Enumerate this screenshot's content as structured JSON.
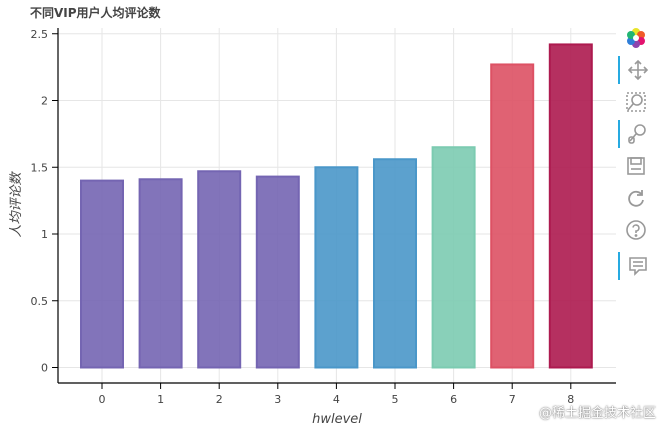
{
  "chart_data": {
    "type": "bar",
    "title": "不同VIP用户人均评论数",
    "xlabel": "hwlevel",
    "ylabel": "人均评论数",
    "categories": [
      "0",
      "1",
      "2",
      "3",
      "4",
      "5",
      "6",
      "7",
      "8"
    ],
    "values": [
      1.4,
      1.41,
      1.47,
      1.43,
      1.5,
      1.56,
      1.65,
      2.27,
      2.42
    ],
    "colors": [
      "#7465b2",
      "#7465b2",
      "#7465b2",
      "#7465b2",
      "#4a97c9",
      "#4a97c9",
      "#7ccbb1",
      "#dd5164",
      "#ad1a4f"
    ],
    "ylim": [
      -0.1,
      2.55
    ],
    "yticks": [
      0,
      0.5,
      1,
      1.5,
      2,
      2.5
    ],
    "ytick_labels": [
      "0",
      "0.5",
      "1",
      "1.5",
      "2",
      "2.5"
    ],
    "grid": true
  },
  "toolbar": [
    {
      "name": "bokeh-logo-icon",
      "active": false
    },
    {
      "name": "pan-icon",
      "active": true
    },
    {
      "name": "box-zoom-icon",
      "active": false
    },
    {
      "name": "wheel-zoom-icon",
      "active": true
    },
    {
      "name": "save-icon",
      "active": false
    },
    {
      "name": "reset-icon",
      "active": false
    },
    {
      "name": "help-icon",
      "active": false
    },
    {
      "name": "hover-icon",
      "active": true
    }
  ],
  "watermark": "@稀土掘金技术社区"
}
